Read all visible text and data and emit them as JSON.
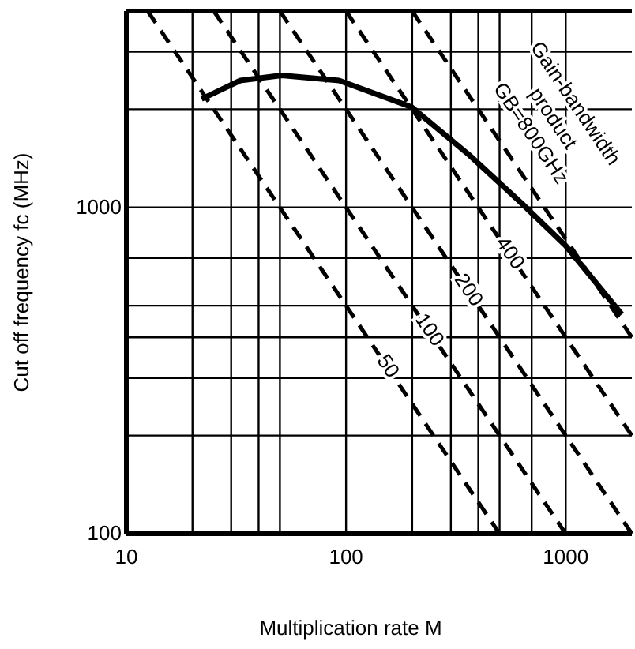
{
  "chart_data": {
    "type": "line",
    "xlabel": "Multiplication rate M",
    "ylabel": "Cut off frequency fc (MHz)",
    "log": "xy",
    "xlim": [
      10,
      2000
    ],
    "ylim": [
      100,
      4000
    ],
    "xticks": [
      10,
      {
        "value": 20,
        "label": null
      },
      {
        "value": 30,
        "label": null
      },
      {
        "value": 40,
        "label": null
      },
      {
        "value": 50,
        "label": null
      },
      100,
      {
        "value": 200,
        "label": null
      },
      {
        "value": 300,
        "label": null
      },
      {
        "value": 400,
        "label": null
      },
      {
        "value": 500,
        "label": null
      },
      {
        "value": 700,
        "label": null
      },
      1000
    ],
    "yticks": [
      100,
      {
        "value": 200,
        "label": null
      },
      {
        "value": 300,
        "label": null
      },
      {
        "value": 400,
        "label": null
      },
      {
        "value": 500,
        "label": null
      },
      {
        "value": 700,
        "label": null
      },
      1000,
      {
        "value": 2000,
        "label": null
      },
      {
        "value": 3000,
        "label": null
      }
    ],
    "grid": true,
    "series": [
      {
        "color": "#000000",
        "line_style": "solid",
        "x": [
          22,
          33,
          51,
          93,
          199,
          363,
          625,
          1000,
          1800
        ],
        "values": [
          2150,
          2450,
          2540,
          2450,
          2030,
          1450,
          1035,
          763,
          470
        ]
      },
      {
        "color": "#000000",
        "line_style": "dashed",
        "x": [
          12.5,
          500
        ],
        "values": [
          4000,
          100
        ]
      },
      {
        "color": "#000000",
        "line_style": "dashed",
        "x": [
          25,
          1000
        ],
        "values": [
          4000,
          100
        ]
      },
      {
        "color": "#000000",
        "line_style": "dashed",
        "x": [
          50,
          2000
        ],
        "values": [
          4000,
          100
        ]
      },
      {
        "color": "#000000",
        "line_style": "dashed",
        "x": [
          100,
          2000
        ],
        "values": [
          4000,
          200
        ]
      },
      {
        "color": "#000000",
        "line_style": "dashed",
        "x": [
          200,
          2000
        ],
        "values": [
          4000,
          400
        ]
      }
    ],
    "annotations": [
      {
        "text": "50",
        "x": 154,
        "y": 325
      },
      {
        "text": "100",
        "x": 238,
        "y": 420
      },
      {
        "text": "200",
        "x": 359,
        "y": 557
      },
      {
        "text": "400",
        "x": 554,
        "y": 722
      },
      {
        "text": "Gain-bandwidth product GB=800GHz",
        "x": 534,
        "y": 1498
      }
    ]
  }
}
